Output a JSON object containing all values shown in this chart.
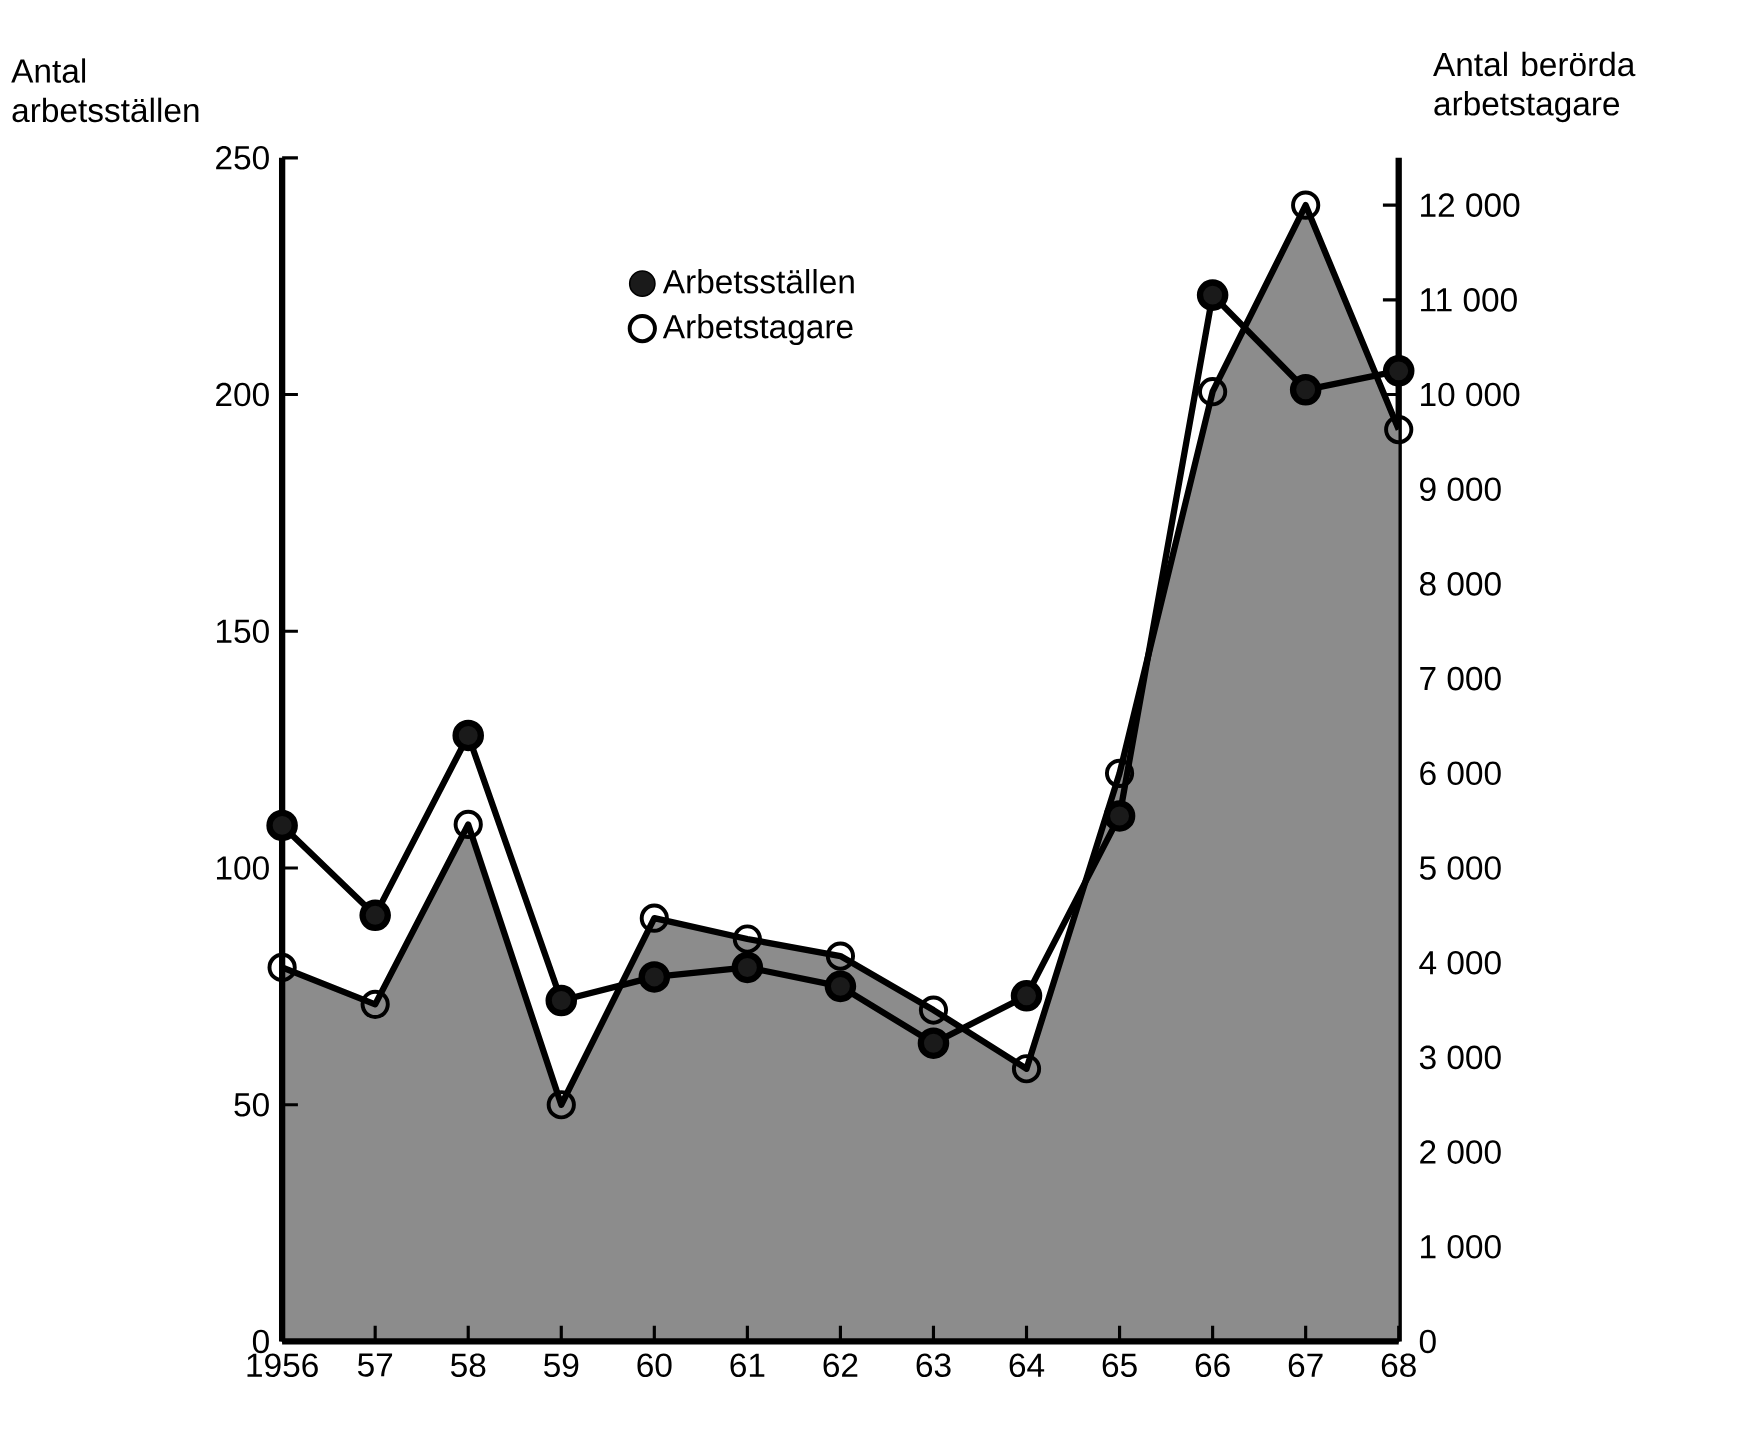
{
  "chart_data": {
    "type": "line",
    "ylabel": "Antal arbetsställen",
    "y2label": "Antal berörda arbetstagare",
    "categories": [
      "1956",
      "57",
      "58",
      "59",
      "60",
      "61",
      "62",
      "63",
      "64",
      "65",
      "66",
      "67",
      "68"
    ],
    "series": [
      {
        "name": "Arbetsställen",
        "color": "#1a1a1a",
        "marker": "circle",
        "values": [
          109,
          90,
          128,
          72,
          77,
          79,
          75,
          63,
          73,
          111,
          221,
          201,
          205
        ]
      },
      {
        "name": "Arbetstagare",
        "type": "area",
        "axis": "y2",
        "color": "#8c8c8c",
        "marker": "circle",
        "values": [
          3950,
          3560,
          5460,
          2500,
          4470,
          4250,
          4070,
          3500,
          2880,
          6000,
          10030,
          12000,
          9630
        ]
      }
    ],
    "ylim": [
      0,
      250
    ],
    "yticks": [
      0,
      50,
      100,
      150,
      200,
      250
    ],
    "y2lim": [
      0,
      12500
    ],
    "y2ticks": [
      {
        "value": 0,
        "label": "0"
      },
      {
        "value": 1000,
        "label": "1 000"
      },
      {
        "value": 2000,
        "label": "2 000"
      },
      {
        "value": 3000,
        "label": "3 000"
      },
      {
        "value": 4000,
        "label": "4 000"
      },
      {
        "value": 5000,
        "label": "5 000"
      },
      {
        "value": 6000,
        "label": "6 000"
      },
      {
        "value": 7000,
        "label": "7 000"
      },
      {
        "value": 8000,
        "label": "8 000"
      },
      {
        "value": 9000,
        "label": "9 000"
      },
      {
        "value": 10000,
        "label": "10 000"
      },
      {
        "value": 11000,
        "label": "11 000"
      },
      {
        "value": 12000,
        "label": "12 000"
      }
    ],
    "legend": "top left",
    "grid": false
  }
}
